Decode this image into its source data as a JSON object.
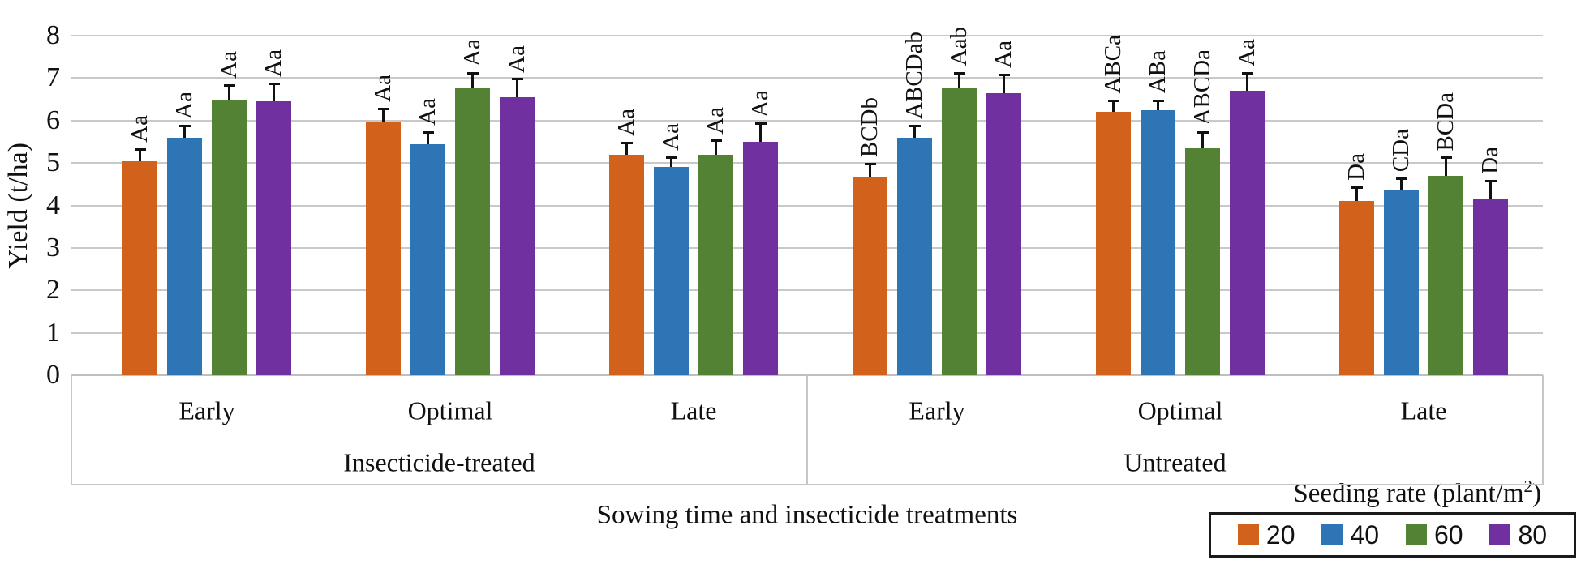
{
  "chart_data": {
    "type": "bar",
    "ylabel": "Yield (t/ha)",
    "xlabel": "Sowing time and insecticide treatments",
    "ylim": [
      0,
      8
    ],
    "ytick_labels": [
      "0",
      "1",
      "2",
      "3",
      "4",
      "5",
      "6",
      "7",
      "8"
    ],
    "grid": true,
    "categories": [
      "Early",
      "Optimal",
      "Late",
      "Early",
      "Optimal",
      "Late"
    ],
    "treatment_groups": [
      {
        "label": "Insecticide-treated",
        "category_span": [
          0,
          2
        ]
      },
      {
        "label": "Untreated",
        "category_span": [
          3,
          5
        ]
      }
    ],
    "series": [
      {
        "name": "20",
        "color": "#d2611c",
        "values": [
          5.05,
          5.95,
          5.2,
          4.65,
          6.2,
          4.1
        ],
        "errors": [
          0.3,
          0.35,
          0.3,
          0.35,
          0.3,
          0.35
        ],
        "labels": [
          "Aa",
          "Aa",
          "Aa",
          "BCDb",
          "ABCa",
          "Da"
        ]
      },
      {
        "name": "40",
        "color": "#2e75b6",
        "values": [
          5.6,
          5.45,
          4.9,
          5.6,
          6.25,
          4.35
        ],
        "errors": [
          0.3,
          0.3,
          0.25,
          0.3,
          0.25,
          0.3
        ],
        "labels": [
          "Aa",
          "Aa",
          "Aa",
          "ABCDab",
          "ABa",
          "CDa"
        ]
      },
      {
        "name": "60",
        "color": "#548235",
        "values": [
          6.5,
          6.75,
          5.2,
          6.75,
          5.35,
          4.7
        ],
        "errors": [
          0.35,
          0.4,
          0.35,
          0.4,
          0.4,
          0.45
        ],
        "labels": [
          "Aa",
          "Aa",
          "Aa",
          "Aab",
          "ABCDa",
          "BCDa"
        ]
      },
      {
        "name": "80",
        "color": "#7030a0",
        "values": [
          6.45,
          6.55,
          5.5,
          6.65,
          6.7,
          4.15
        ],
        "errors": [
          0.45,
          0.45,
          0.45,
          0.45,
          0.45,
          0.45
        ],
        "labels": [
          "Aa",
          "Aa",
          "Aa",
          "Aa",
          "Aa",
          "Da"
        ]
      }
    ],
    "legend": {
      "title": "Seeding rate (plant/m",
      "title_sup": "2",
      "title_suffix": ")",
      "position": "bottom-right",
      "entries": [
        "20",
        "40",
        "60",
        "80"
      ]
    }
  }
}
